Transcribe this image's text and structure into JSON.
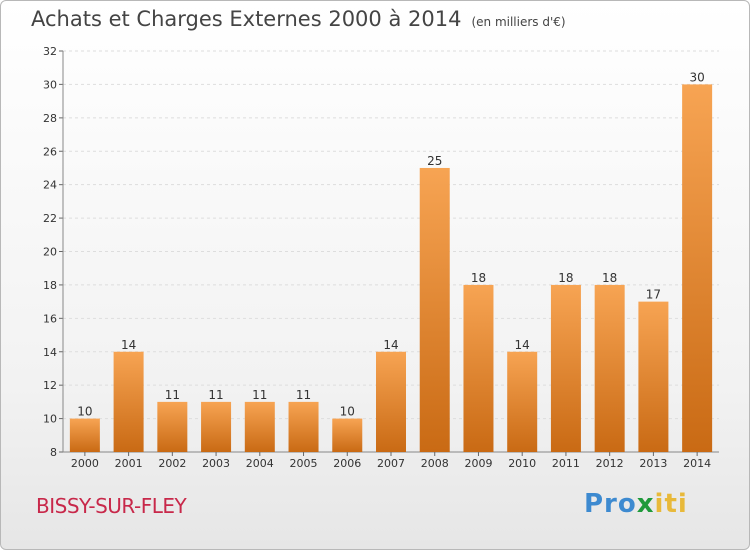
{
  "header": {
    "title": "Achats et Charges Externes 2000 à 2014",
    "unit": "(en milliers d'€)"
  },
  "footer": {
    "commune": "BISSY-SUR-FLEY",
    "logo": {
      "p1": "Pro",
      "p2": "x",
      "p3": "iti"
    }
  },
  "colors": {
    "bar_top": "#f7a453",
    "bar_bottom": "#c96a14",
    "commune": "#c8284a",
    "logo_p": "#3d8ad0",
    "logo_ro": "#f08a24",
    "logo_x": "#1f9a3b",
    "logo_iti": "#e8b93a"
  },
  "chart_data": {
    "type": "bar",
    "title": "Achats et Charges Externes 2000 à 2014",
    "subtitle": "(en milliers d'€)",
    "categories": [
      "2000",
      "2001",
      "2002",
      "2003",
      "2004",
      "2005",
      "2006",
      "2007",
      "2008",
      "2009",
      "2010",
      "2011",
      "2012",
      "2013",
      "2014"
    ],
    "values": [
      10,
      14,
      11,
      11,
      11,
      11,
      10,
      14,
      25,
      18,
      14,
      18,
      18,
      17,
      30
    ],
    "ylim": [
      8,
      32
    ],
    "yticks": [
      8,
      10,
      12,
      14,
      16,
      18,
      20,
      22,
      24,
      26,
      28,
      30,
      32
    ],
    "grid": true,
    "legend": "none"
  }
}
